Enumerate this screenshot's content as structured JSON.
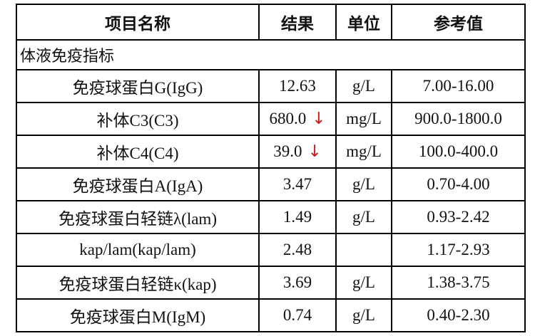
{
  "header": [
    "项目名称",
    "结果",
    "单位",
    "参考值"
  ],
  "section": "体液免疫指标",
  "rows": [
    {
      "name": "免疫球蛋白G(IgG)",
      "result": "12.63",
      "unit": "g/L",
      "range": "7.00-16.00"
    },
    {
      "name": "补体C3(C3)",
      "result": "680.0",
      "flag": "↓",
      "unit": "mg/L",
      "range": "900.0-1800.0"
    },
    {
      "name": "补体C4(C4)",
      "result": "39.0",
      "flag": "↓",
      "unit": "mg/L",
      "range": "100.0-400.0"
    },
    {
      "name": "免疫球蛋白A(IgA)",
      "result": "3.47",
      "unit": "g/L",
      "range": "0.70-4.00"
    },
    {
      "name": "免疫球蛋白轻链λ(lam)",
      "result": "1.49",
      "unit": "g/L",
      "range": "0.93-2.42"
    },
    {
      "name": "kap/lam(kap/lam)",
      "result": "2.48",
      "unit": null,
      "range": "1.17-2.93"
    },
    {
      "name": "免疫球蛋白轻链κ(kap)",
      "result": "3.69",
      "unit": "g/L",
      "range": "1.38-3.75"
    },
    {
      "name": "免疫球蛋白M(IgM)",
      "result": "0.74",
      "unit": "g/L",
      "range": "0.40-2.30"
    }
  ]
}
